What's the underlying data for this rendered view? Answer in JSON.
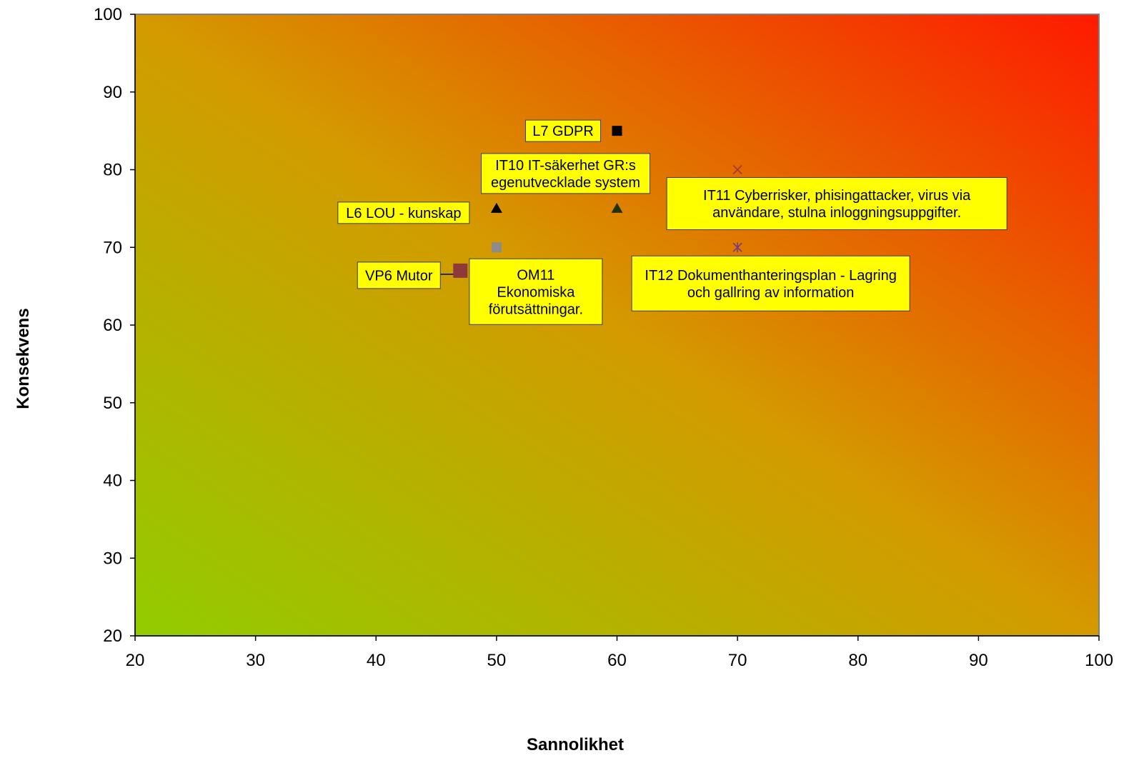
{
  "chart_data": {
    "type": "scatter",
    "xlabel": "Sannolikhet",
    "ylabel": "Konsekvens",
    "xlim": [
      20,
      100
    ],
    "ylim": [
      20,
      100
    ],
    "xticks": [
      20,
      30,
      40,
      50,
      60,
      70,
      80,
      90,
      100
    ],
    "yticks": [
      20,
      30,
      40,
      50,
      60,
      70,
      80,
      90,
      100
    ],
    "grid": false,
    "legend": "none",
    "background": "gradient green (bottom-left) to red (top-right)",
    "colors": {
      "gradient_low": "#92cc00",
      "gradient_mid": "#d49a00",
      "gradient_high": "#ff1a00",
      "label_fill": "#ffff00",
      "label_border": "#3b3b6b"
    },
    "series": [
      {
        "x": 60,
        "y": 85,
        "marker": "square",
        "color": "#000000",
        "label": [
          "L7 GDPR"
        ]
      },
      {
        "x": 60,
        "y": 75,
        "marker": "triangle",
        "color": "#233006",
        "label": [
          "IT10 IT-säkerhet GR:s",
          "egenutvecklade system"
        ]
      },
      {
        "x": 50,
        "y": 75,
        "marker": "triangle",
        "color": "#000000",
        "label": [
          "L6 LOU - kunskap"
        ]
      },
      {
        "x": 50,
        "y": 70,
        "marker": "square",
        "color": "#8c8c8c",
        "label": [
          "OM11",
          "Ekonomiska",
          "förutsättningar."
        ]
      },
      {
        "x": 47,
        "y": 67,
        "marker": "square-large",
        "color": "#8e3a3a",
        "label": [
          "VP6 Mutor"
        ]
      },
      {
        "x": 70,
        "y": 80,
        "marker": "x",
        "color": "#a03a3a",
        "label": [
          "IT11 Cyberrisker, phisingattacker, virus via",
          "användare, stulna inloggningsuppgifter."
        ]
      },
      {
        "x": 70,
        "y": 70,
        "marker": "asterisk",
        "color": "#7b3a7b",
        "label": [
          "IT12 Dokumenthanteringsplan - Lagring",
          "och gallring av information"
        ]
      }
    ]
  }
}
